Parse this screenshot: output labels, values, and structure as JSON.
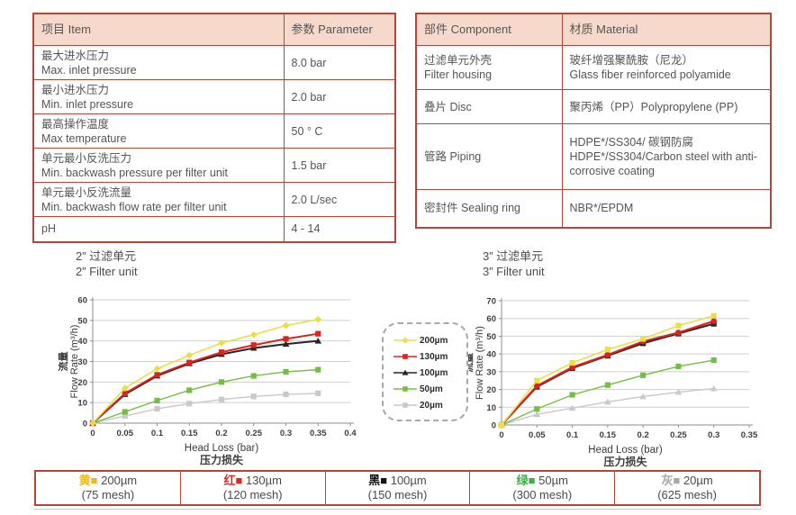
{
  "theme": {
    "table_border": "#b5453a",
    "header_bg": "#f6d9cb",
    "text": "#555555"
  },
  "spec_table": {
    "headers": {
      "item": "项目 Item",
      "parameter": "参数 Parameter"
    },
    "rows": [
      {
        "zh": "最大进水压力",
        "en": "Max. inlet pressure",
        "value": "8.0 bar"
      },
      {
        "zh": "最小进水压力",
        "en": "Min. inlet pressure",
        "value": "2.0 bar"
      },
      {
        "zh": "最高操作温度",
        "en": "Max temperature",
        "value": "50 ° C"
      },
      {
        "zh": "单元最小反洗压力",
        "en": "Min. backwash pressure per filter unit",
        "value": "1.5 bar"
      },
      {
        "zh": "单元最小反洗流量",
        "en": "Min. backwash flow rate per filter unit",
        "value": "2.0 L/sec"
      },
      {
        "zh": "pH",
        "en": "",
        "value": "4 - 14"
      }
    ]
  },
  "material_table": {
    "headers": {
      "component": "部件 Component",
      "material": "材质 Material"
    },
    "rows": [
      {
        "zh": "过滤单元外壳",
        "en": "Filter housing",
        "mat_zh": "玻纤增强聚酰胺（尼龙）",
        "mat_en": "Glass fiber reinforced polyamide"
      },
      {
        "zh": "叠片 Disc",
        "en": "",
        "mat_zh": "聚丙烯（PP）Polypropylene (PP)",
        "mat_en": ""
      },
      {
        "zh": "管路 Piping",
        "en": "",
        "mat_zh": "HDPE*/SS304/ 碳钢防腐",
        "mat_en": "HDPE*/SS304/Carbon steel with anti-corrosive coating"
      },
      {
        "zh": "密封件 Sealing ring",
        "en": "",
        "mat_zh": "NBR*/EPDM",
        "mat_en": ""
      }
    ]
  },
  "chart_data": [
    {
      "type": "line",
      "title_zh": "2” 过滤单元",
      "title_en": "2” Filter unit",
      "ylabel_zh": "流量",
      "ylabel_en": "Flow Rate (m³/h)",
      "xlabel_en": "Head Loss (bar)",
      "xlabel_zh": "压力损失",
      "xlim": [
        0,
        0.4
      ],
      "ylim": [
        0,
        60
      ],
      "xticks": [
        0,
        0.05,
        0.1,
        0.15,
        0.2,
        0.25,
        0.3,
        0.35,
        0.4
      ],
      "yticks": [
        0,
        10,
        20,
        30,
        40,
        50,
        60
      ],
      "grid": "horizontal",
      "x": [
        0,
        0.05,
        0.1,
        0.15,
        0.2,
        0.25,
        0.3,
        0.35
      ],
      "series": [
        {
          "name": "20µm",
          "color": "#c9c9c9",
          "marker": "square",
          "width": 1.4,
          "values": [
            0,
            3.5,
            7,
            9.5,
            11.5,
            13,
            14,
            14.5
          ]
        },
        {
          "name": "50µm",
          "color": "#72bf44",
          "marker": "square",
          "width": 1.4,
          "values": [
            0,
            5.5,
            11,
            16,
            20,
            23,
            25,
            26
          ]
        },
        {
          "name": "100µm",
          "color": "#262626",
          "marker": "triangle",
          "width": 2,
          "values": [
            0,
            14,
            23,
            29,
            33.5,
            36.5,
            38.5,
            40
          ]
        },
        {
          "name": "130µm",
          "color": "#d9251d",
          "marker": "square",
          "width": 2,
          "values": [
            0,
            14.5,
            23.5,
            29.5,
            34.5,
            38,
            41,
            43.5
          ]
        },
        {
          "name": "200µm",
          "color": "#e6e04b",
          "marker": "diamond",
          "width": 1.6,
          "values": [
            0,
            17,
            26.5,
            33,
            39,
            43,
            47.5,
            50.5
          ]
        }
      ]
    },
    {
      "type": "line",
      "title_zh": "3” 过滤单元",
      "title_en": "3” Filter unit",
      "ylabel_zh": "流量",
      "ylabel_en": "Flow Rate (m³/h)",
      "xlabel_en": "Head Loss (bar)",
      "xlabel_zh": "压力损失",
      "xlim": [
        0,
        0.35
      ],
      "ylim": [
        0,
        70
      ],
      "xticks": [
        0,
        0.05,
        0.1,
        0.15,
        0.2,
        0.25,
        0.3,
        0.35
      ],
      "yticks": [
        0,
        10,
        20,
        30,
        40,
        50,
        60,
        70
      ],
      "grid": "horizontal",
      "x": [
        0,
        0.05,
        0.1,
        0.15,
        0.2,
        0.25,
        0.3
      ],
      "series": [
        {
          "name": "20µm",
          "color": "#c9c9c9",
          "marker": "triangle",
          "width": 1.4,
          "values": [
            0,
            6,
            9.5,
            13,
            16,
            18.5,
            20.5
          ]
        },
        {
          "name": "50µm",
          "color": "#72bf44",
          "marker": "square",
          "width": 1.4,
          "values": [
            0,
            9,
            17,
            22.5,
            28,
            33,
            36.5
          ]
        },
        {
          "name": "100µm",
          "color": "#262626",
          "marker": "square",
          "width": 2,
          "values": [
            0,
            21.5,
            32,
            39,
            46,
            51.5,
            57
          ]
        },
        {
          "name": "130µm",
          "color": "#d9251d",
          "marker": "circle",
          "width": 2.2,
          "values": [
            0,
            22,
            32.5,
            39.5,
            47,
            52,
            58.5
          ]
        },
        {
          "name": "200µm",
          "color": "#e6e04b",
          "marker": "square",
          "width": 1.6,
          "values": [
            0,
            25,
            35,
            42.5,
            48.5,
            56,
            61.5
          ]
        }
      ]
    }
  ],
  "legend_box": {
    "items": [
      {
        "label": "200µm",
        "color": "#e6e04b",
        "marker": "diamond"
      },
      {
        "label": "130µm",
        "color": "#d9251d",
        "marker": "square"
      },
      {
        "label": "100µm",
        "color": "#262626",
        "marker": "triangle"
      },
      {
        "label": "50µm",
        "color": "#72bf44",
        "marker": "square"
      },
      {
        "label": "20µm",
        "color": "#c9c9c9",
        "marker": "square"
      }
    ]
  },
  "bottom_legend": {
    "cells": [
      {
        "prefix": "黄■",
        "color": "#f0b62a",
        "size": "200µm",
        "mesh": "(75 mesh)"
      },
      {
        "prefix": "红■",
        "color": "#e0281e",
        "size": "130µm",
        "mesh": "(120 mesh)"
      },
      {
        "prefix": "黑■",
        "color": "#141414",
        "size": "100µm",
        "mesh": "(150 mesh)"
      },
      {
        "prefix": "绿■",
        "color": "#3fae49",
        "size": "50µm",
        "mesh": "(300 mesh)"
      },
      {
        "prefix": "灰■",
        "color": "#a9a9a9",
        "size": "20µm",
        "mesh": "(625 mesh)"
      }
    ]
  }
}
